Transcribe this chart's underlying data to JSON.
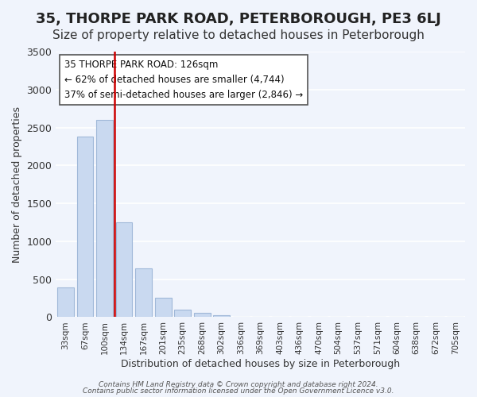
{
  "title": "35, THORPE PARK ROAD, PETERBOROUGH, PE3 6LJ",
  "subtitle": "Size of property relative to detached houses in Peterborough",
  "xlabel": "Distribution of detached houses by size in Peterborough",
  "ylabel": "Number of detached properties",
  "bar_labels": [
    "33sqm",
    "67sqm",
    "100sqm",
    "134sqm",
    "167sqm",
    "201sqm",
    "235sqm",
    "268sqm",
    "302sqm",
    "336sqm",
    "369sqm",
    "403sqm",
    "436sqm",
    "470sqm",
    "504sqm",
    "537sqm",
    "571sqm",
    "604sqm",
    "638sqm",
    "672sqm",
    "705sqm"
  ],
  "bar_values": [
    390,
    2380,
    2600,
    1250,
    640,
    260,
    100,
    55,
    30,
    0,
    0,
    0,
    0,
    0,
    0,
    0,
    0,
    0,
    0,
    0,
    0
  ],
  "bar_color": "#c9d9f0",
  "bar_edge_color": "#a0b8d8",
  "vline_x": 2.5,
  "vline_color": "#cc0000",
  "ylim": [
    0,
    3500
  ],
  "yticks": [
    0,
    500,
    1000,
    1500,
    2000,
    2500,
    3000,
    3500
  ],
  "annotation_title": "35 THORPE PARK ROAD: 126sqm",
  "annotation_line1": "← 62% of detached houses are smaller (4,744)",
  "annotation_line2": "37% of semi-detached houses are larger (2,846) →",
  "annotation_box_color": "#ffffff",
  "annotation_box_edge": "#555555",
  "footer_line1": "Contains HM Land Registry data © Crown copyright and database right 2024.",
  "footer_line2": "Contains public sector information licensed under the Open Government Licence v3.0.",
  "background_color": "#f0f4fc",
  "title_fontsize": 13,
  "subtitle_fontsize": 11
}
